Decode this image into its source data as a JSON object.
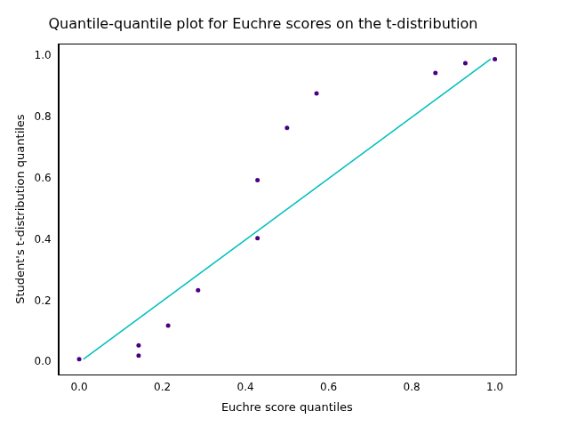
{
  "chart_data": {
    "type": "scatter",
    "title": "Quantile-quantile plot for Euchre scores on the t-distribution",
    "x_label": "Euchre score quantiles",
    "y_label": "Student's t-distribution quantiles",
    "series": [
      {
        "type": "scatter",
        "marker": "circle",
        "color": "#4b0082",
        "x": [
          0.0,
          0.143,
          0.143,
          0.214,
          0.286,
          0.429,
          0.429,
          0.5,
          0.571,
          0.857,
          0.929,
          1.0
        ],
        "values": [
          0.01,
          0.055,
          0.022,
          0.12,
          0.235,
          0.595,
          0.405,
          0.765,
          0.878,
          0.945,
          0.977,
          0.99
        ]
      },
      {
        "type": "line",
        "line_style": "solid",
        "color": "#00bfbf",
        "x": [
          0.01,
          0.99
        ],
        "values": [
          0.01,
          0.99
        ]
      }
    ],
    "xlim": [
      -0.05,
      1.05
    ],
    "xticks": [
      {
        "value": 0,
        "label": "0.0"
      },
      0.2,
      0.4,
      0.6,
      0.8,
      {
        "value": 1,
        "label": "1.0"
      }
    ],
    "ylim": [
      -0.04,
      1.04
    ],
    "yticks": [
      {
        "value": 0,
        "label": "0.0"
      },
      0.2,
      0.4,
      0.6,
      0.8,
      {
        "value": 1,
        "label": "1.0"
      }
    ],
    "grid": false
  }
}
